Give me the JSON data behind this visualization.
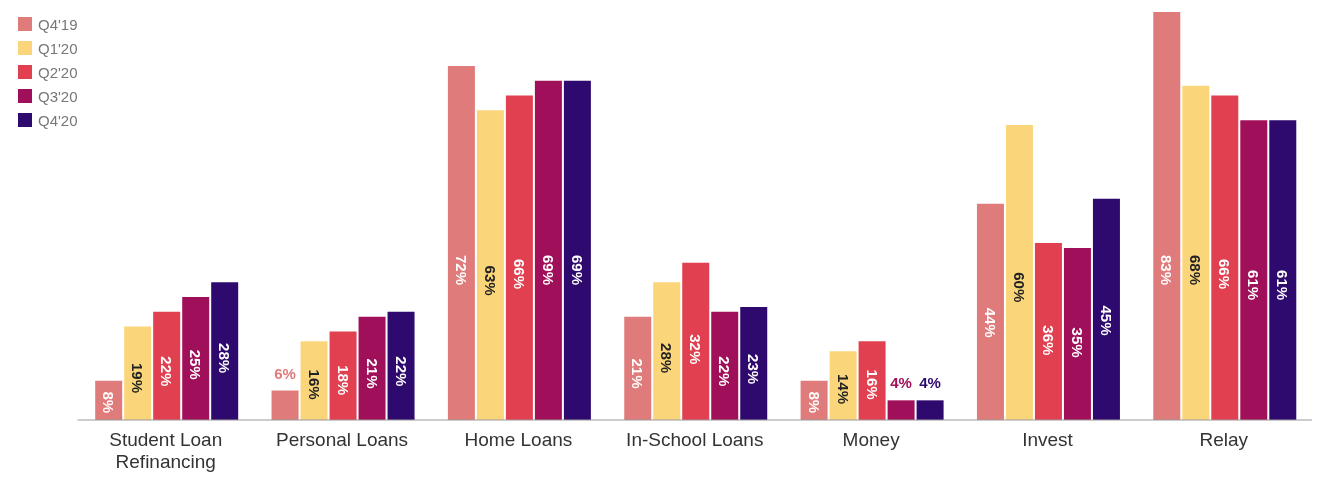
{
  "chart_data": {
    "type": "bar",
    "categories": [
      "Student Loan Refinancing",
      "Personal Loans",
      "Home Loans",
      "In-School Loans",
      "Money",
      "Invest",
      "Relay"
    ],
    "legend": "top left",
    "series": [
      {
        "name": "Q4'19",
        "color": "#e07b7b",
        "values": [
          8,
          6,
          72,
          21,
          8,
          44,
          83
        ],
        "value_labels": [
          "8%",
          "6%",
          "72%",
          "21%",
          "8%",
          "44%",
          "83%"
        ]
      },
      {
        "name": "Q1'20",
        "color": "#fad57a",
        "values": [
          19,
          16,
          63,
          28,
          14,
          60,
          68
        ],
        "value_labels": [
          "19%",
          "16%",
          "63%",
          "28%",
          "14%",
          "60%",
          "68%"
        ]
      },
      {
        "name": "Q2'20",
        "color": "#e0404f",
        "values": [
          22,
          18,
          66,
          32,
          16,
          36,
          66
        ],
        "value_labels": [
          "22%",
          "18%",
          "66%",
          "32%",
          "16%",
          "36%",
          "66%"
        ]
      },
      {
        "name": "Q3'20",
        "color": "#a0105a",
        "values": [
          25,
          21,
          69,
          22,
          4,
          35,
          61
        ],
        "value_labels": [
          "25%",
          "21%",
          "69%",
          "22%",
          "4%",
          "35%",
          "61%"
        ]
      },
      {
        "name": "Q4'20",
        "color": "#2e0a6e",
        "values": [
          28,
          22,
          69,
          23,
          4,
          45,
          61
        ],
        "value_labels": [
          "28%",
          "22%",
          "69%",
          "23%",
          "4%",
          "45%",
          "61%"
        ]
      }
    ]
  }
}
